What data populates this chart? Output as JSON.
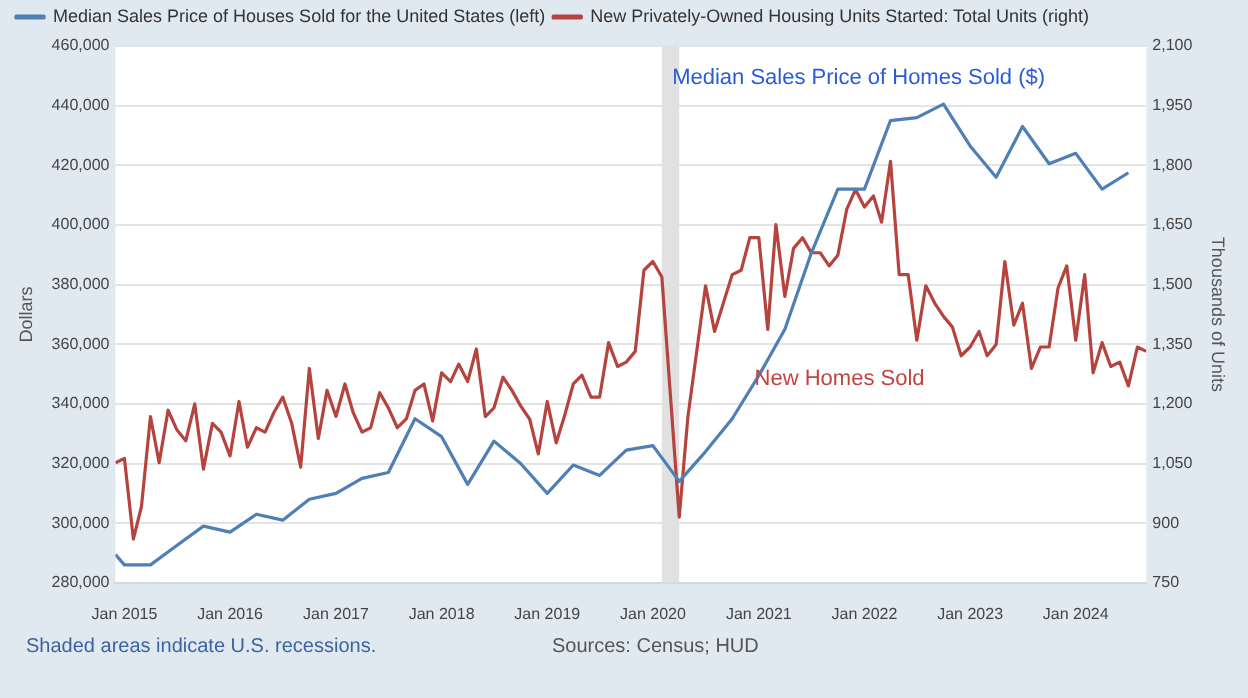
{
  "chart_data": {
    "type": "line",
    "ylabel": "Dollars",
    "y2label": "Thousands of Units",
    "xlim": [
      "2014-12",
      "2024-09"
    ],
    "xticks": [
      {
        "value": "2015-01",
        "label": "Jan 2015"
      },
      {
        "value": "2016-01",
        "label": "Jan 2016"
      },
      {
        "value": "2017-01",
        "label": "Jan 2017"
      },
      {
        "value": "2018-01",
        "label": "Jan 2018"
      },
      {
        "value": "2019-01",
        "label": "Jan 2019"
      },
      {
        "value": "2020-01",
        "label": "Jan 2020"
      },
      {
        "value": "2021-01",
        "label": "Jan 2021"
      },
      {
        "value": "2022-01",
        "label": "Jan 2022"
      },
      {
        "value": "2023-01",
        "label": "Jan 2023"
      },
      {
        "value": "2024-01",
        "label": "Jan 2024"
      }
    ],
    "ylim": [
      280000,
      460000
    ],
    "yticks": [
      {
        "value": 280000,
        "label": "280,000"
      },
      {
        "value": 300000,
        "label": "300,000"
      },
      {
        "value": 320000,
        "label": "320,000"
      },
      {
        "value": 340000,
        "label": "340,000"
      },
      {
        "value": 360000,
        "label": "360,000"
      },
      {
        "value": 380000,
        "label": "380,000"
      },
      {
        "value": 400000,
        "label": "400,000"
      },
      {
        "value": 420000,
        "label": "420,000"
      },
      {
        "value": 440000,
        "label": "440,000"
      },
      {
        "value": 460000,
        "label": "460,000"
      }
    ],
    "y2lim": [
      750,
      2100
    ],
    "y2ticks": [
      750,
      900,
      {
        "value": 1050,
        "label": "1,050"
      },
      {
        "value": 1200,
        "label": "1,200"
      },
      {
        "value": 1350,
        "label": "1,350"
      },
      {
        "value": 1500,
        "label": "1,500"
      },
      {
        "value": 1650,
        "label": "1,650"
      },
      {
        "value": 1800,
        "label": "1,800"
      },
      {
        "value": 1950,
        "label": "1,950"
      },
      {
        "value": 2100,
        "label": "2,100"
      }
    ],
    "grid": "y",
    "legend": "top left",
    "marker": "none",
    "line_style": "solid",
    "bands": [
      {
        "axis": "x",
        "from": "2020-02",
        "to": "2020-04",
        "color": "#e1e1e1"
      }
    ],
    "annotations": [
      "Median Sales Price of Homes Sold ($)",
      "New Homes Sold",
      "Shaded areas indicate U.S. recessions.",
      "Sources: Census; HUD"
    ],
    "series": [
      {
        "name": "Median Sales Price of Houses Sold for the United States (left)",
        "color": "#4f7fb5",
        "x": [
          "2014-12",
          "2015-01",
          "2015-04",
          "2015-07",
          "2015-10",
          "2016-01",
          "2016-04",
          "2016-07",
          "2016-10",
          "2017-01",
          "2017-04",
          "2017-07",
          "2017-10",
          "2018-01",
          "2018-04",
          "2018-07",
          "2018-10",
          "2019-01",
          "2019-04",
          "2019-07",
          "2019-10",
          "2020-01",
          "2020-04",
          "2020-07",
          "2020-10",
          "2021-01",
          "2021-04",
          "2021-07",
          "2021-10",
          "2022-01",
          "2022-04",
          "2022-07",
          "2022-10",
          "2023-01",
          "2023-04",
          "2023-07",
          "2023-10",
          "2024-01",
          "2024-04",
          "2024-07"
        ],
        "values": [
          289500,
          286000,
          286000,
          292500,
          299000,
          297000,
          303000,
          301000,
          308000,
          310000,
          315000,
          317000,
          335000,
          329000,
          313000,
          327500,
          320000,
          310000,
          319500,
          316000,
          324500,
          326000,
          314000,
          324000,
          335000,
          349500,
          365000,
          390500,
          412000,
          412000,
          435000,
          436000,
          440500,
          426500,
          416000,
          433000,
          420500,
          424000,
          412000,
          417500
        ]
      },
      {
        "name": "New Privately-Owned Housing Units Started: Total Units (right)",
        "color": "#b5443f",
        "axis": "y2",
        "x": [
          "2014-12",
          "2015-01",
          "2015-02",
          "2015-03",
          "2015-04",
          "2015-05",
          "2015-06",
          "2015-07",
          "2015-08",
          "2015-09",
          "2015-10",
          "2015-11",
          "2015-12",
          "2016-01",
          "2016-02",
          "2016-03",
          "2016-04",
          "2016-05",
          "2016-06",
          "2016-07",
          "2016-08",
          "2016-09",
          "2016-10",
          "2016-11",
          "2016-12",
          "2017-01",
          "2017-02",
          "2017-03",
          "2017-04",
          "2017-05",
          "2017-06",
          "2017-07",
          "2017-08",
          "2017-09",
          "2017-10",
          "2017-11",
          "2017-12",
          "2018-01",
          "2018-02",
          "2018-03",
          "2018-04",
          "2018-05",
          "2018-06",
          "2018-07",
          "2018-08",
          "2018-09",
          "2018-10",
          "2018-11",
          "2018-12",
          "2019-01",
          "2019-02",
          "2019-03",
          "2019-04",
          "2019-05",
          "2019-06",
          "2019-07",
          "2019-08",
          "2019-09",
          "2019-10",
          "2019-11",
          "2019-12",
          "2020-01",
          "2020-02",
          "2020-04",
          "2020-05",
          "2020-07",
          "2020-08",
          "2020-10",
          "2020-11",
          "2020-12",
          "2021-01",
          "2021-02",
          "2021-03",
          "2021-04",
          "2021-05",
          "2021-06",
          "2021-07",
          "2021-08",
          "2021-09",
          "2021-10",
          "2021-11",
          "2021-12",
          "2022-01",
          "2022-02",
          "2022-03",
          "2022-04",
          "2022-05",
          "2022-06",
          "2022-07",
          "2022-08",
          "2022-09",
          "2022-10",
          "2022-11",
          "2022-12",
          "2023-01",
          "2023-02",
          "2023-03",
          "2023-04",
          "2023-05",
          "2023-06",
          "2023-07",
          "2023-08",
          "2023-09",
          "2023-10",
          "2023-11",
          "2023-12",
          "2024-01",
          "2024-02",
          "2024-03",
          "2024-04",
          "2024-05",
          "2024-06",
          "2024-07",
          "2024-08",
          "2024-09"
        ],
        "values": [
          1052,
          1063,
          860,
          942,
          1168,
          1052,
          1184,
          1135,
          1107,
          1200,
          1036,
          1151,
          1129,
          1069,
          1206,
          1091,
          1140,
          1129,
          1179,
          1217,
          1151,
          1041,
          1289,
          1113,
          1234,
          1168,
          1250,
          1179,
          1129,
          1140,
          1228,
          1190,
          1140,
          1162,
          1234,
          1250,
          1157,
          1278,
          1256,
          1300,
          1256,
          1338,
          1168,
          1190,
          1267,
          1234,
          1195,
          1162,
          1074,
          1206,
          1102,
          1168,
          1250,
          1272,
          1217,
          1217,
          1354,
          1294,
          1305,
          1332,
          1536,
          1558,
          1519,
          915,
          1168,
          1497,
          1382,
          1525,
          1536,
          1618,
          1618,
          1387,
          1651,
          1470,
          1591,
          1618,
          1580,
          1580,
          1547,
          1574,
          1690,
          1739,
          1695,
          1723,
          1657,
          1810,
          1525,
          1525,
          1360,
          1497,
          1453,
          1420,
          1393,
          1321,
          1343,
          1382,
          1321,
          1349,
          1558,
          1398,
          1453,
          1289,
          1343,
          1343,
          1492,
          1547,
          1360,
          1525,
          1278,
          1354,
          1294,
          1305,
          1245,
          1343,
          1332
        ]
      }
    ]
  }
}
